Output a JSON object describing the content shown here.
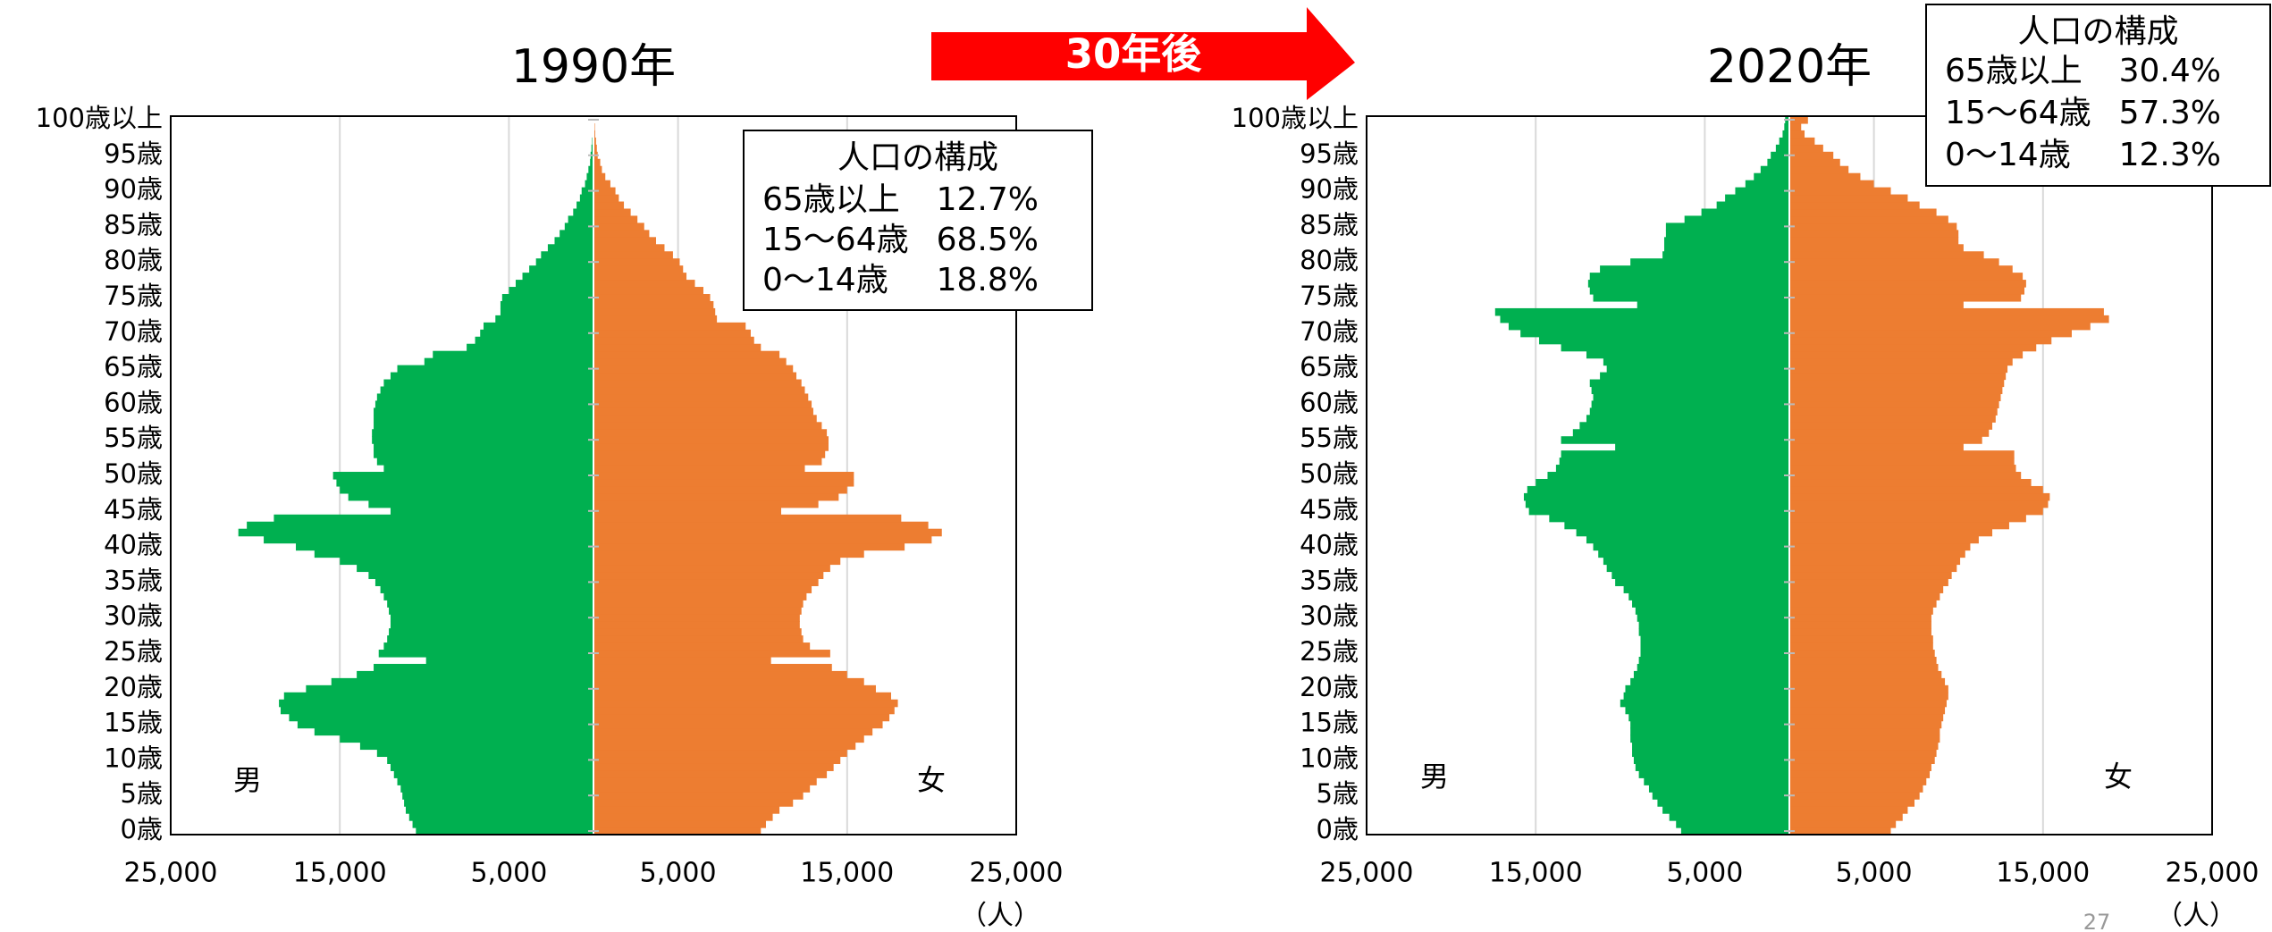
{
  "arrow_label": "30年後",
  "page_number": "27",
  "chart_data": [
    {
      "type": "pyramid",
      "title": "1990年",
      "x_unit": "（人）",
      "categories": [
        "0歳",
        null,
        null,
        null,
        null,
        "5歳",
        null,
        null,
        null,
        null,
        "10歳",
        null,
        null,
        null,
        null,
        "15歳",
        null,
        null,
        null,
        null,
        "20歳",
        null,
        null,
        null,
        null,
        "25歳",
        null,
        null,
        null,
        null,
        "30歳",
        null,
        null,
        null,
        null,
        "35歳",
        null,
        null,
        null,
        null,
        "40歳",
        null,
        null,
        null,
        null,
        "45歳",
        null,
        null,
        null,
        null,
        "50歳",
        null,
        null,
        null,
        null,
        "55歳",
        null,
        null,
        null,
        null,
        "60歳",
        null,
        null,
        null,
        null,
        "65歳",
        null,
        null,
        null,
        null,
        "70歳",
        null,
        null,
        null,
        null,
        "75歳",
        null,
        null,
        null,
        null,
        "80歳",
        null,
        null,
        null,
        null,
        "85歳",
        null,
        null,
        null,
        null,
        "90歳",
        null,
        null,
        null,
        null,
        "95歳",
        null,
        null,
        null,
        null,
        "100歳以上"
      ],
      "series": [
        {
          "name": "男",
          "color": "#00b050",
          "values": [
            10500,
            10700,
            10900,
            11100,
            11200,
            11300,
            11400,
            11600,
            11800,
            12000,
            12200,
            12800,
            13800,
            15000,
            16500,
            17500,
            18000,
            18500,
            18600,
            18300,
            17000,
            15500,
            14000,
            13000,
            9900,
            12700,
            12400,
            12200,
            12100,
            12000,
            12000,
            12100,
            12200,
            12400,
            12600,
            12900,
            13300,
            14000,
            15000,
            16500,
            17600,
            19500,
            21000,
            20500,
            18900,
            12000,
            13300,
            14500,
            15000,
            15200,
            15400,
            12400,
            12800,
            13000,
            13000,
            13100,
            13100,
            13000,
            13000,
            13000,
            12900,
            12800,
            12600,
            12400,
            12000,
            11600,
            10000,
            9500,
            7500,
            7000,
            6700,
            6500,
            5800,
            5500,
            5500,
            5400,
            5000,
            4600,
            4200,
            3800,
            3400,
            3100,
            2700,
            2300,
            2000,
            1700,
            1500,
            1200,
            1000,
            800,
            700,
            500,
            400,
            300,
            200,
            170,
            120,
            80,
            50,
            30,
            50
          ]
        },
        {
          "name": "女",
          "color": "#ed7d31",
          "values": [
            9900,
            10200,
            10600,
            11000,
            11800,
            12400,
            12800,
            13200,
            13800,
            14200,
            14600,
            15000,
            15500,
            16000,
            16500,
            17100,
            17500,
            17800,
            18000,
            17600,
            16700,
            16000,
            15000,
            14100,
            10500,
            14000,
            12800,
            12400,
            12300,
            12200,
            12200,
            12300,
            12400,
            12600,
            12900,
            13300,
            13600,
            14000,
            14600,
            16000,
            18400,
            20000,
            20600,
            19800,
            18200,
            11100,
            13300,
            14500,
            15000,
            15400,
            15400,
            12500,
            13500,
            13700,
            13900,
            13900,
            13800,
            13500,
            13200,
            13000,
            12900,
            12700,
            12500,
            12300,
            12000,
            11800,
            11400,
            11000,
            9900,
            9500,
            9300,
            9000,
            7300,
            7200,
            7100,
            6900,
            6500,
            6000,
            5500,
            5300,
            5100,
            4700,
            4200,
            3700,
            3300,
            3000,
            2600,
            2200,
            1800,
            1500,
            1300,
            1000,
            700,
            500,
            400,
            250,
            200,
            150,
            100,
            80,
            50
          ]
        }
      ],
      "xlim": [
        -25000,
        25000
      ],
      "xticks": [
        {
          "value": -25000,
          "label": "25,000"
        },
        {
          "value": -15000,
          "label": "15,000"
        },
        {
          "value": -5000,
          "label": "5,000"
        },
        {
          "value": 5000,
          "label": "5,000"
        },
        {
          "value": 15000,
          "label": "15,000"
        },
        {
          "value": 25000,
          "label": "25,000"
        }
      ],
      "grid": true,
      "composition": {
        "title": "人口の構成",
        "rows": [
          {
            "label": "65歳以上",
            "value": "12.7%"
          },
          {
            "label": "15～64歳",
            "value": "68.5%"
          },
          {
            "label": "0～14歳",
            "value": "18.8%"
          }
        ]
      }
    },
    {
      "type": "pyramid",
      "title": "2020年",
      "x_unit": "（人）",
      "categories": [
        "0歳",
        null,
        null,
        null,
        null,
        "5歳",
        null,
        null,
        null,
        null,
        "10歳",
        null,
        null,
        null,
        null,
        "15歳",
        null,
        null,
        null,
        null,
        "20歳",
        null,
        null,
        null,
        null,
        "25歳",
        null,
        null,
        null,
        null,
        "30歳",
        null,
        null,
        null,
        null,
        "35歳",
        null,
        null,
        null,
        null,
        "40歳",
        null,
        null,
        null,
        null,
        "45歳",
        null,
        null,
        null,
        null,
        "50歳",
        null,
        null,
        null,
        null,
        "55歳",
        null,
        null,
        null,
        null,
        "60歳",
        null,
        null,
        null,
        null,
        "65歳",
        null,
        null,
        null,
        null,
        "70歳",
        null,
        null,
        null,
        null,
        "75歳",
        null,
        null,
        null,
        null,
        "80歳",
        null,
        null,
        null,
        null,
        "85歳",
        null,
        null,
        null,
        null,
        "90歳",
        null,
        null,
        null,
        null,
        "95歳",
        null,
        null,
        null,
        null,
        "100歳以上"
      ],
      "series": [
        {
          "name": "男",
          "color": "#00b050",
          "values": [
            6400,
            6700,
            7100,
            7500,
            7800,
            8100,
            8300,
            8600,
            8900,
            9100,
            9200,
            9300,
            9300,
            9400,
            9400,
            9400,
            9500,
            9700,
            10000,
            9800,
            9700,
            9400,
            9200,
            9000,
            8900,
            8800,
            8800,
            8800,
            8900,
            8900,
            9000,
            9100,
            9300,
            9500,
            9800,
            10300,
            10500,
            10800,
            11000,
            11300,
            11600,
            12000,
            12600,
            13300,
            14200,
            15400,
            15600,
            15700,
            15500,
            15000,
            14300,
            13800,
            13600,
            13500,
            10300,
            13500,
            12800,
            12400,
            12000,
            11800,
            11700,
            11600,
            11700,
            11800,
            11200,
            10800,
            11000,
            12000,
            13500,
            14800,
            15900,
            16600,
            17100,
            17400,
            9000,
            11600,
            11800,
            11900,
            11800,
            11200,
            9400,
            7500,
            7400,
            7400,
            7300,
            7300,
            6200,
            5200,
            4300,
            3800,
            3200,
            2600,
            2100,
            1700,
            1300,
            1100,
            800,
            600,
            400,
            300,
            250
          ]
        },
        {
          "name": "女",
          "color": "#ed7d31",
          "values": [
            6000,
            6300,
            6700,
            7000,
            7400,
            7700,
            7900,
            8100,
            8300,
            8400,
            8600,
            8700,
            8800,
            8900,
            8900,
            9000,
            9100,
            9200,
            9300,
            9400,
            9400,
            9200,
            9000,
            8800,
            8700,
            8600,
            8500,
            8500,
            8400,
            8400,
            8400,
            8500,
            8700,
            8900,
            9100,
            9400,
            9600,
            9900,
            10100,
            10400,
            10700,
            11200,
            12000,
            13000,
            14000,
            15000,
            15300,
            15400,
            15000,
            14300,
            13700,
            13400,
            13300,
            13300,
            10300,
            11400,
            11800,
            12000,
            12200,
            12300,
            12400,
            12500,
            12600,
            12700,
            12800,
            12900,
            13200,
            13800,
            14600,
            15500,
            16700,
            17800,
            18900,
            18600,
            10300,
            13700,
            13900,
            14000,
            13800,
            13200,
            12400,
            11500,
            10300,
            10000,
            10000,
            9900,
            9400,
            8700,
            7700,
            7000,
            6000,
            5000,
            4200,
            3500,
            3000,
            2600,
            2000,
            1500,
            900,
            700,
            1100
          ]
        }
      ],
      "xlim": [
        -25000,
        25000
      ],
      "xticks": [
        {
          "value": -25000,
          "label": "25,000"
        },
        {
          "value": -15000,
          "label": "15,000"
        },
        {
          "value": -5000,
          "label": "5,000"
        },
        {
          "value": 5000,
          "label": "5,000"
        },
        {
          "value": 15000,
          "label": "15,000"
        },
        {
          "value": 25000,
          "label": "25,000"
        }
      ],
      "grid": true,
      "composition": {
        "title": "人口の構成",
        "rows": [
          {
            "label": "65歳以上",
            "value": "30.4%"
          },
          {
            "label": "15～64歳",
            "value": "57.3%"
          },
          {
            "label": "0～14歳",
            "value": "12.3%"
          }
        ]
      }
    }
  ]
}
